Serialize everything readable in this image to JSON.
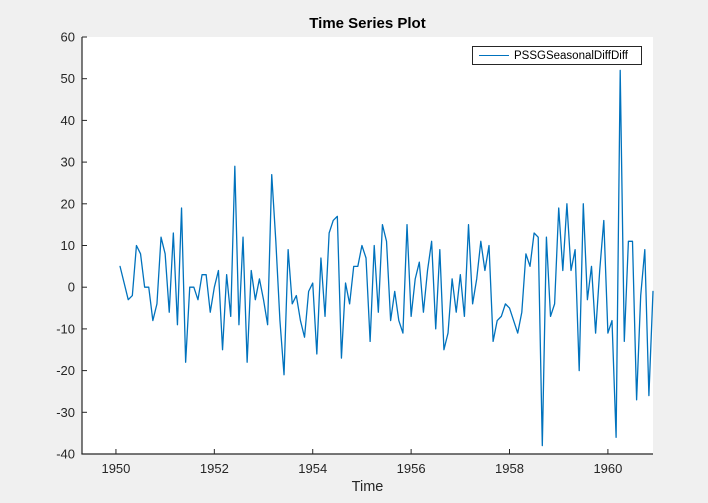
{
  "figure": {
    "background_color": "#f0f0f0",
    "plot_background_color": "#ffffff",
    "axis_color": "#262626"
  },
  "chart_data": {
    "type": "line",
    "title": "Time Series Plot",
    "xlabel": "Time",
    "ylabel": "",
    "grid": false,
    "legend_position": "top-right-inside",
    "legend": [
      {
        "label": "PSSGSeasonalDiffDiff",
        "color": "#0072BD"
      }
    ],
    "xlim": [
      1949.31,
      1960.9167
    ],
    "ylim": [
      -40,
      60
    ],
    "x_ticks": [
      1950,
      1952,
      1954,
      1956,
      1958,
      1960
    ],
    "y_ticks": [
      -40,
      -30,
      -20,
      -10,
      0,
      10,
      20,
      30,
      40,
      50,
      60
    ],
    "series": [
      {
        "name": "PSSGSeasonalDiffDiff",
        "color": "#0072BD",
        "interval": "monthly",
        "x_start_year": 1950,
        "x_start_month": 2,
        "x_end_year": 1960,
        "x_end_month": 12,
        "values": [
          5,
          1,
          -3,
          -2,
          10,
          8,
          0,
          0,
          -8,
          -4,
          12,
          8,
          -6,
          13,
          -9,
          19,
          -18,
          0,
          0,
          -3,
          3,
          3,
          -6,
          0,
          4,
          -15,
          3,
          -7,
          29,
          -9,
          12,
          -18,
          4,
          -3,
          2,
          -3,
          -9,
          27,
          11,
          -8,
          -21,
          9,
          -4,
          -2,
          -8,
          -12,
          -1,
          1,
          -16,
          7,
          -7,
          13,
          16,
          17,
          -17,
          1,
          -4,
          5,
          5,
          10,
          7,
          -13,
          10,
          -6,
          15,
          11,
          -8,
          -1,
          -8,
          -11,
          15,
          -7,
          2,
          6,
          -6,
          4,
          11,
          -10,
          9,
          -15,
          -11,
          2,
          -6,
          3,
          -7,
          15,
          -4,
          2,
          11,
          4,
          10,
          -13,
          -8,
          -7,
          -4,
          -5,
          -8,
          -11,
          -6,
          8,
          5,
          13,
          12,
          -38,
          12,
          -7,
          -4,
          19,
          4,
          20,
          4,
          9,
          -20,
          20,
          -3,
          5,
          -11,
          4,
          16,
          -11,
          -8,
          -36,
          52,
          -13,
          11,
          11,
          -27,
          -2,
          9,
          -26,
          -1
        ]
      }
    ]
  }
}
